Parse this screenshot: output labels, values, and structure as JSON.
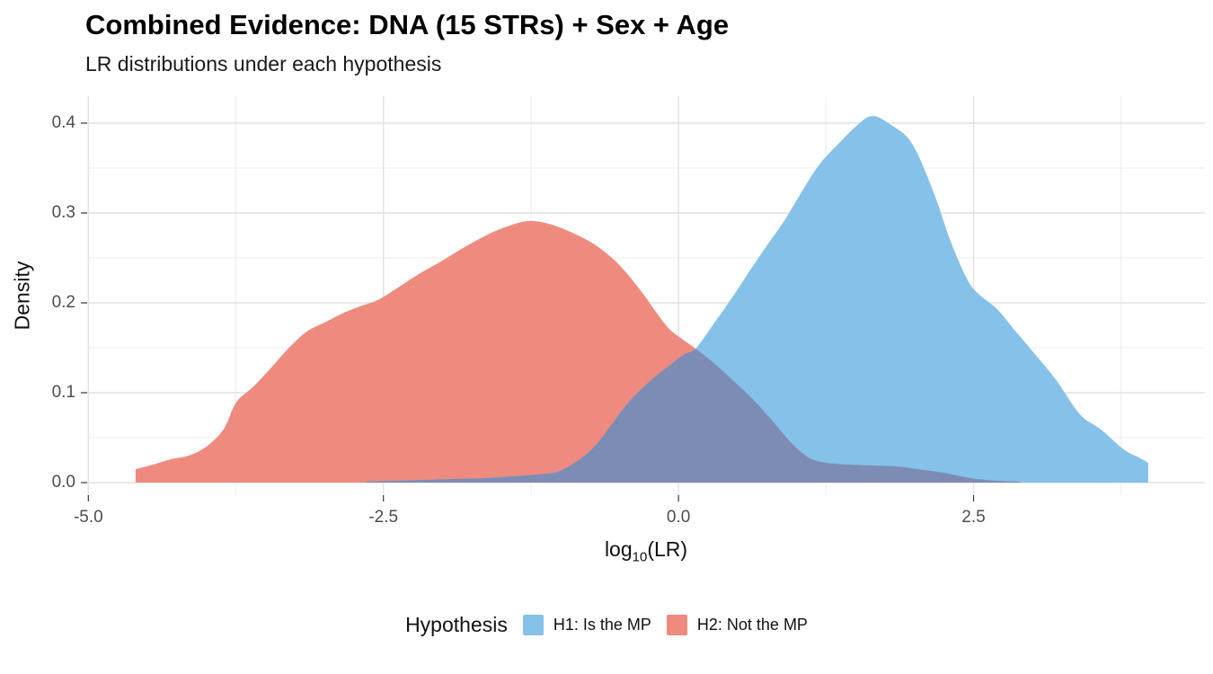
{
  "header": {
    "title": "Combined Evidence: DNA (15 STRs) + Sex + Age",
    "subtitle": "LR distributions under each hypothesis"
  },
  "legend": {
    "title": "Hypothesis",
    "items": [
      {
        "label": "H1: Is the MP",
        "color": "#85C1E9"
      },
      {
        "label": "H2: Not the MP",
        "color": "#EE8B7E"
      }
    ]
  },
  "chart_data": {
    "type": "area",
    "title": "Combined Evidence: DNA (15 STRs) + Sex + Age",
    "subtitle": "LR distributions under each hypothesis",
    "xlabel_main": "log",
    "xlabel_sub": "10",
    "xlabel_rest": "(LR)",
    "ylabel": "Density",
    "grid": true,
    "legend_position": "bottom",
    "xlim": [
      -5.01,
      4.46
    ],
    "ylim": [
      -0.014,
      0.43
    ],
    "x_ticks": [
      -5.0,
      -2.5,
      0.0,
      2.5
    ],
    "x_tick_labels": [
      "-5.0",
      "-2.5",
      "0.0",
      "2.5"
    ],
    "x_minor_ticks": [
      -3.75,
      -1.25,
      1.25,
      3.75
    ],
    "y_ticks": [
      0.0,
      0.1,
      0.2,
      0.3,
      0.4
    ],
    "y_tick_labels": [
      "0.0",
      "0.1",
      "0.2",
      "0.3",
      "0.4"
    ],
    "y_minor_ticks": [
      0.05,
      0.15,
      0.25,
      0.35
    ],
    "overlap_color": "#7D8CB5",
    "series": [
      {
        "name": "H1: Is the MP",
        "color": "#85C1E9",
        "points": [
          [
            -2.65,
            0.001
          ],
          [
            -2.4,
            0.002
          ],
          [
            -2.15,
            0.003
          ],
          [
            -1.9,
            0.004
          ],
          [
            -1.65,
            0.005
          ],
          [
            -1.4,
            0.007
          ],
          [
            -1.2,
            0.009
          ],
          [
            -1.03,
            0.012
          ],
          [
            -0.88,
            0.022
          ],
          [
            -0.72,
            0.039
          ],
          [
            -0.57,
            0.064
          ],
          [
            -0.42,
            0.09
          ],
          [
            -0.25,
            0.112
          ],
          [
            -0.1,
            0.128
          ],
          [
            0.05,
            0.143
          ],
          [
            0.145,
            0.149
          ],
          [
            0.3,
            0.177
          ],
          [
            0.45,
            0.205
          ],
          [
            0.6,
            0.235
          ],
          [
            0.75,
            0.264
          ],
          [
            0.9,
            0.292
          ],
          [
            1.05,
            0.325
          ],
          [
            1.2,
            0.355
          ],
          [
            1.37,
            0.379
          ],
          [
            1.5,
            0.396
          ],
          [
            1.64,
            0.408
          ],
          [
            1.8,
            0.398
          ],
          [
            1.98,
            0.377
          ],
          [
            2.17,
            0.32
          ],
          [
            2.3,
            0.27
          ],
          [
            2.45,
            0.225
          ],
          [
            2.55,
            0.209
          ],
          [
            2.7,
            0.193
          ],
          [
            2.82,
            0.174
          ],
          [
            3.0,
            0.146
          ],
          [
            3.2,
            0.114
          ],
          [
            3.4,
            0.076
          ],
          [
            3.58,
            0.059
          ],
          [
            3.77,
            0.037
          ],
          [
            3.9,
            0.028
          ],
          [
            3.98,
            0.022
          ]
        ]
      },
      {
        "name": "H2: Not the MP",
        "color": "#EE8B7E",
        "points": [
          [
            -4.6,
            0.015
          ],
          [
            -4.45,
            0.02
          ],
          [
            -4.3,
            0.026
          ],
          [
            -4.15,
            0.03
          ],
          [
            -4.0,
            0.04
          ],
          [
            -3.85,
            0.06
          ],
          [
            -3.75,
            0.089
          ],
          [
            -3.6,
            0.107
          ],
          [
            -3.45,
            0.128
          ],
          [
            -3.3,
            0.15
          ],
          [
            -3.15,
            0.168
          ],
          [
            -3.0,
            0.178
          ],
          [
            -2.85,
            0.188
          ],
          [
            -2.7,
            0.196
          ],
          [
            -2.55,
            0.203
          ],
          [
            -2.4,
            0.215
          ],
          [
            -2.2,
            0.232
          ],
          [
            -2.0,
            0.247
          ],
          [
            -1.8,
            0.263
          ],
          [
            -1.6,
            0.277
          ],
          [
            -1.45,
            0.285
          ],
          [
            -1.28,
            0.291
          ],
          [
            -1.1,
            0.288
          ],
          [
            -0.9,
            0.278
          ],
          [
            -0.7,
            0.264
          ],
          [
            -0.5,
            0.242
          ],
          [
            -0.3,
            0.21
          ],
          [
            -0.1,
            0.174
          ],
          [
            0.05,
            0.158
          ],
          [
            0.145,
            0.149
          ],
          [
            0.3,
            0.133
          ],
          [
            0.5,
            0.109
          ],
          [
            0.65,
            0.09
          ],
          [
            0.8,
            0.068
          ],
          [
            0.95,
            0.045
          ],
          [
            1.1,
            0.028
          ],
          [
            1.25,
            0.022
          ],
          [
            1.45,
            0.02
          ],
          [
            1.65,
            0.019
          ],
          [
            1.85,
            0.018
          ],
          [
            2.02,
            0.015
          ],
          [
            2.25,
            0.011
          ],
          [
            2.47,
            0.005
          ],
          [
            2.7,
            0.002
          ],
          [
            2.9,
            0.001
          ]
        ]
      }
    ]
  }
}
